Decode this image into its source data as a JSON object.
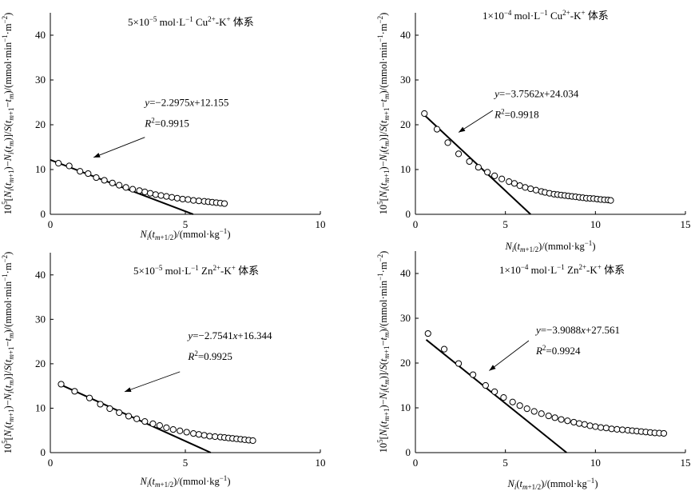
{
  "chart_data": [
    {
      "type": "scatter",
      "title": "5×10⁻⁵ mol·L⁻¹ Cu²⁺-K⁺ 体系",
      "title_parts": {
        "coef": "5",
        "times": "×10",
        "exp": "−5",
        "unit": " mol·L",
        "unit_exp": "−1",
        "ion": " Cu",
        "ion_charge": "2+",
        "rest": "-K",
        "rest_charge": "+",
        "system": " 体系"
      },
      "xlabel": "Nᵢ(tₘ₊₁/₂)/(mmol·kg⁻¹)",
      "ylabel": "10⁵[Nᵢ(tₘ₊₁)−Nᵢ(tₘ)]/S(tₘ₊₁−tₘ)/(mmol·min⁻¹·m⁻²)",
      "xlim": [
        0,
        10
      ],
      "ylim": [
        0,
        45
      ],
      "xticks": [
        0,
        5,
        10
      ],
      "yticks": [
        0,
        10,
        20,
        30,
        40
      ],
      "fit": {
        "slope": -2.2975,
        "intercept": 12.155,
        "x_range": [
          0,
          5.29
        ]
      },
      "equation": "y=−2.2975x+12.155",
      "equation_parts": {
        "y": "y",
        "eq": "=−2.2975",
        "x": "x",
        "tail": "+12.155"
      },
      "r2": "R²=0.9915",
      "r2_parts": {
        "r": "R",
        "sup": "2",
        "tail": "=0.9915"
      },
      "arrow": {
        "from": [
          3.5,
          17.2
        ],
        "to": [
          1.6,
          12.7
        ]
      },
      "annotation_at": [
        3.5,
        24.2
      ],
      "points": {
        "x": [
          0.3,
          0.7,
          1.1,
          1.4,
          1.7,
          2.0,
          2.3,
          2.55,
          2.8,
          3.05,
          3.3,
          3.5,
          3.7,
          3.9,
          4.1,
          4.3,
          4.5,
          4.7,
          4.9,
          5.1,
          5.3,
          5.5,
          5.7,
          5.85,
          6.0,
          6.15,
          6.3,
          6.45
        ],
        "y": [
          11.4,
          10.8,
          9.6,
          9.1,
          8.2,
          7.6,
          7.0,
          6.5,
          6.0,
          5.6,
          5.3,
          5.0,
          4.7,
          4.4,
          4.2,
          4.0,
          3.8,
          3.6,
          3.4,
          3.3,
          3.1,
          3.0,
          2.9,
          2.8,
          2.7,
          2.6,
          2.5,
          2.4
        ]
      }
    },
    {
      "type": "scatter",
      "title": "1×10⁻⁴ mol·L⁻¹ Cu²⁺-K⁺ 体系",
      "title_parts": {
        "coef": "1",
        "times": "×10",
        "exp": "−4",
        "unit": " mol·L",
        "unit_exp": "−1",
        "ion": " Cu",
        "ion_charge": "2+",
        "rest": "-K",
        "rest_charge": "+",
        "system": " 体系"
      },
      "xlabel": "Nᵢ(tₘ₊₁/₂)/(mmol·kg⁻¹)",
      "ylabel": "10⁵[Nᵢ(tₘ₊₁)−Nᵢ(tₘ)]/S(tₘ₊₁−tₘ)/(mmol·min⁻¹·m⁻²)",
      "xlim": [
        0,
        15
      ],
      "ylim": [
        0,
        45
      ],
      "xticks": [
        0,
        5,
        10,
        15
      ],
      "yticks": [
        0,
        10,
        20,
        30,
        40
      ],
      "fit": {
        "slope": -3.7562,
        "intercept": 24.034,
        "x_range": [
          0.35,
          6.4
        ]
      },
      "equation": "y=−3.7562x+24.034",
      "equation_parts": {
        "y": "y",
        "eq": "=−3.7562",
        "x": "x",
        "tail": "+24.034"
      },
      "r2": "R²=0.9918",
      "r2_parts": {
        "r": "R",
        "sup": "2",
        "tail": "=0.9918"
      },
      "arrow": {
        "from": [
          4.3,
          23.2
        ],
        "to": [
          2.4,
          18.3
        ]
      },
      "annotation_at": [
        4.4,
        26.2
      ],
      "points": {
        "x": [
          0.5,
          1.2,
          1.8,
          2.4,
          3.0,
          3.5,
          4.0,
          4.4,
          4.8,
          5.2,
          5.5,
          5.8,
          6.1,
          6.4,
          6.7,
          7.0,
          7.2,
          7.45,
          7.7,
          7.9,
          8.1,
          8.3,
          8.5,
          8.7,
          8.9,
          9.1,
          9.3,
          9.5,
          9.7,
          9.9,
          10.1,
          10.3,
          10.5,
          10.7,
          10.85
        ],
        "y": [
          22.5,
          19.0,
          16.0,
          13.5,
          11.8,
          10.5,
          9.4,
          8.6,
          7.9,
          7.3,
          6.9,
          6.4,
          6.0,
          5.7,
          5.4,
          5.1,
          4.9,
          4.7,
          4.5,
          4.4,
          4.3,
          4.2,
          4.1,
          4.0,
          3.9,
          3.8,
          3.7,
          3.6,
          3.55,
          3.5,
          3.4,
          3.3,
          3.25,
          3.2,
          3.1
        ]
      }
    },
    {
      "type": "scatter",
      "title": "5×10⁻⁵ mol·L⁻¹ Zn²⁺-K⁺ 体系",
      "title_parts": {
        "coef": "5",
        "times": "×10",
        "exp": "−5",
        "unit": " mol·L",
        "unit_exp": "−1",
        "ion": " Zn",
        "ion_charge": "2+",
        "rest": "-K",
        "rest_charge": "+",
        "system": " 体系"
      },
      "xlabel": "Nᵢ(tₘ₊₁/₂)/(mmol·kg⁻¹)",
      "ylabel": "10⁵[Nᵢ(tₘ₊₁)−Nᵢ(tₘ)]/S(tₘ₊₁−tₘ)/(mmol·min⁻¹·m⁻²)",
      "xlim": [
        0,
        10
      ],
      "ylim": [
        0,
        45
      ],
      "xticks": [
        0,
        5,
        10
      ],
      "yticks": [
        0,
        10,
        20,
        30,
        40
      ],
      "fit": {
        "slope": -2.7541,
        "intercept": 16.344,
        "x_range": [
          0.35,
          5.94
        ]
      },
      "equation": "y=−2.7541x+16.344",
      "equation_parts": {
        "y": "y",
        "eq": "=−2.7541",
        "x": "x",
        "tail": "+16.344"
      },
      "r2": "R²=0.9925",
      "r2_parts": {
        "r": "R",
        "sup": "2",
        "tail": "=0.9925"
      },
      "arrow": {
        "from": [
          4.8,
          18.2
        ],
        "to": [
          2.75,
          13.7
        ]
      },
      "annotation_at": [
        5.1,
        25.6
      ],
      "points": {
        "x": [
          0.4,
          0.9,
          1.45,
          1.85,
          2.2,
          2.55,
          2.9,
          3.2,
          3.5,
          3.8,
          4.05,
          4.3,
          4.55,
          4.8,
          5.05,
          5.3,
          5.5,
          5.7,
          5.9,
          6.1,
          6.3,
          6.45,
          6.6,
          6.75,
          6.9,
          7.05,
          7.2,
          7.35,
          7.5
        ],
        "y": [
          15.4,
          13.8,
          12.3,
          10.9,
          9.9,
          9.0,
          8.2,
          7.6,
          7.0,
          6.5,
          6.1,
          5.6,
          5.2,
          4.9,
          4.6,
          4.3,
          4.1,
          3.9,
          3.7,
          3.6,
          3.5,
          3.4,
          3.3,
          3.2,
          3.1,
          3.0,
          2.9,
          2.8,
          2.7
        ]
      }
    },
    {
      "type": "scatter",
      "title": "1×10⁻⁴ mol·L⁻¹ Zn²⁺-K⁺ 体系",
      "title_parts": {
        "coef": "1",
        "times": "×10",
        "exp": "−4",
        "unit": " mol·L",
        "unit_exp": "−1",
        "ion": " Zn",
        "ion_charge": "2+",
        "rest": "-K",
        "rest_charge": "+",
        "system": " 体系"
      },
      "xlabel": "Nᵢ(tₘ₊₁/₂)/(mmol·kg⁻¹)",
      "ylabel": "10⁵[Nᵢ(tₘ₊₁)−Nᵢ(tₘ)]/S(tₘ₊₁−tₘ)/(mmol·min⁻¹·m⁻²)",
      "xlim": [
        0,
        15
      ],
      "ylim": [
        0,
        45
      ],
      "xticks": [
        0,
        5,
        10,
        15
      ],
      "yticks": [
        0,
        10,
        20,
        30,
        40
      ],
      "fit": {
        "slope": -3.9088,
        "intercept": 27.561,
        "x_range": [
          0.6,
          8.4
        ]
      },
      "equation": "y=−3.9088x+27.561",
      "equation_parts": {
        "y": "y",
        "eq": "=−3.9088",
        "x": "x",
        "tail": "+27.561"
      },
      "r2": "R²=0.9924",
      "r2_parts": {
        "r": "R",
        "sup": "2",
        "tail": "=0.9924"
      },
      "arrow": {
        "from": [
          6.3,
          25.0
        ],
        "to": [
          4.1,
          18.3
        ]
      },
      "annotation_at": [
        6.7,
        26.6
      ],
      "points": {
        "x": [
          0.7,
          1.6,
          2.4,
          3.2,
          3.9,
          4.4,
          4.9,
          5.4,
          5.8,
          6.2,
          6.6,
          7.0,
          7.4,
          7.75,
          8.1,
          8.45,
          8.8,
          9.1,
          9.4,
          9.7,
          10.0,
          10.3,
          10.6,
          10.9,
          11.2,
          11.5,
          11.8,
          12.05,
          12.3,
          12.55,
          12.8,
          13.05,
          13.3,
          13.55,
          13.8
        ],
        "y": [
          26.6,
          23.1,
          19.9,
          17.4,
          15.0,
          13.6,
          12.3,
          11.3,
          10.5,
          9.8,
          9.2,
          8.7,
          8.2,
          7.8,
          7.4,
          7.1,
          6.8,
          6.5,
          6.3,
          6.0,
          5.8,
          5.6,
          5.5,
          5.3,
          5.2,
          5.1,
          5.0,
          4.9,
          4.8,
          4.7,
          4.6,
          4.5,
          4.4,
          4.35,
          4.3
        ]
      }
    }
  ]
}
